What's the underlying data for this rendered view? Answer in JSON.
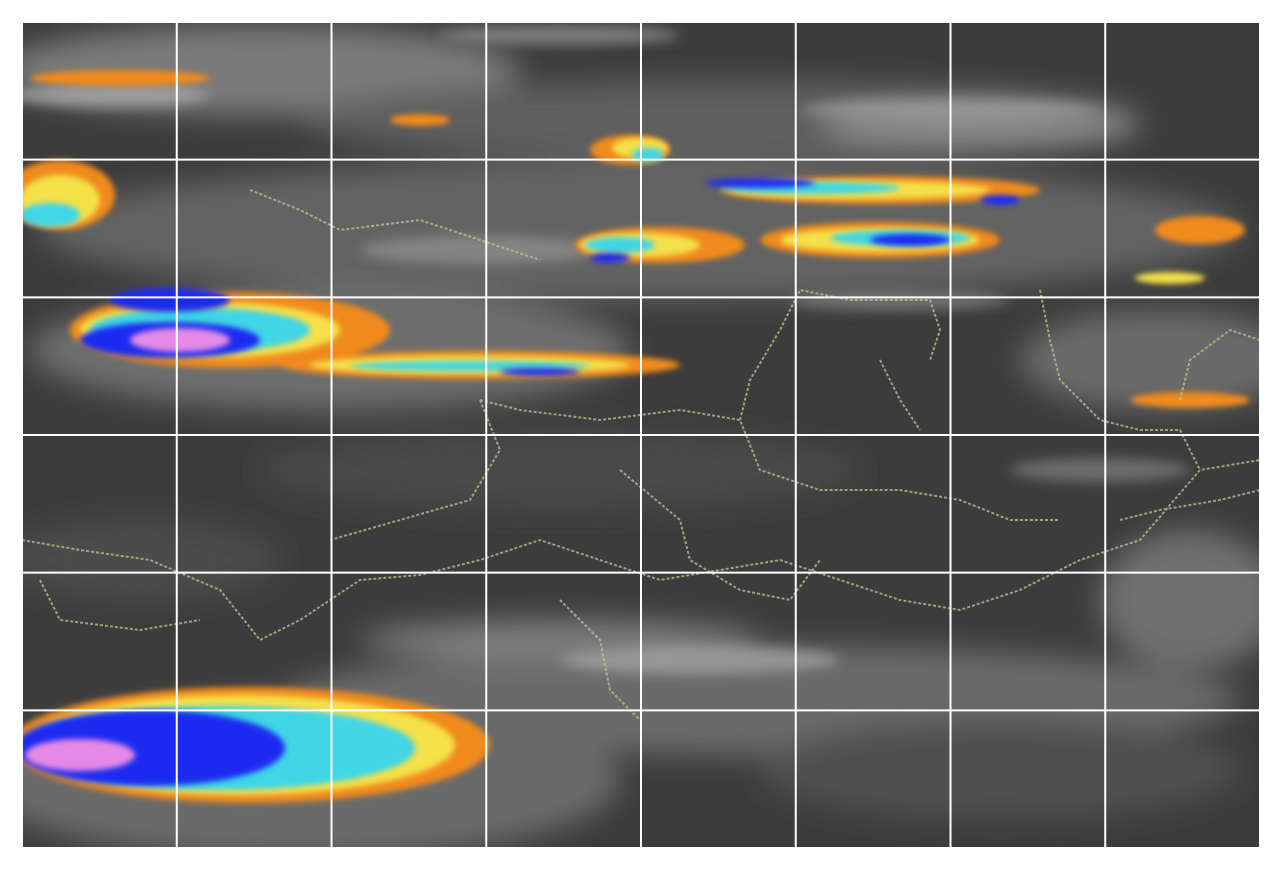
{
  "map": {
    "kind": "enhanced infrared satellite image",
    "palette": {
      "background": "#ffffff",
      "cloud_dark": "#3a3a3a",
      "cloud_mid": "#5a5a5a",
      "cloud_light": "#8a8a8a",
      "cloud_bright": "#b8b8b8",
      "orange": "#f08a1c",
      "yellow": "#f4e04a",
      "cyan": "#3fd6e6",
      "blue": "#1a2cf0",
      "magenta": "#e48ae6",
      "border_line": "#c8c090",
      "grid_line": "#ffffff"
    },
    "grid": {
      "on": true,
      "columns": 8,
      "rows": 6
    }
  }
}
